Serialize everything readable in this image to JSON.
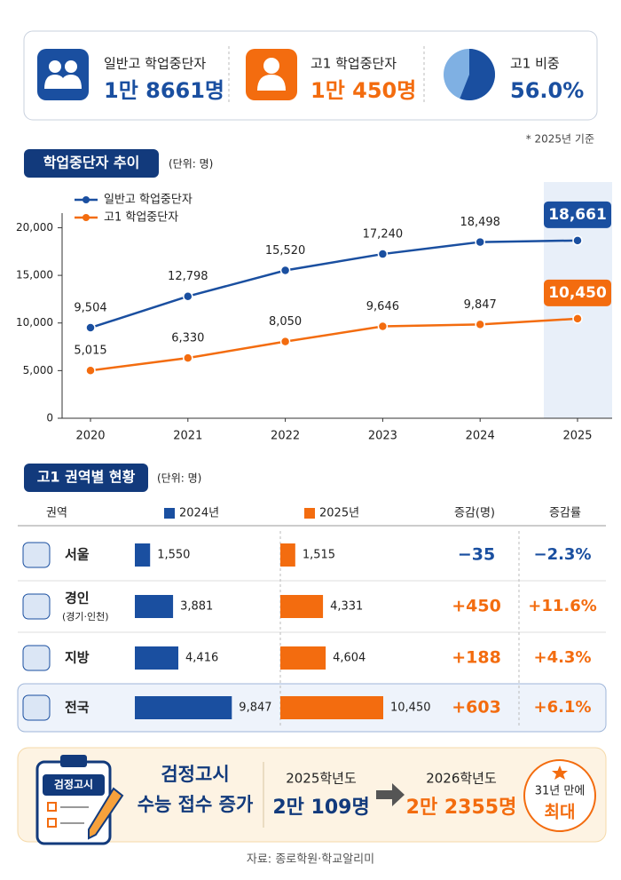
{
  "summary": [
    {
      "label": "일반고 학업중단자",
      "value": "1만 8661명"
    },
    {
      "label": "고1 학업중단자",
      "value": "1만 450명"
    },
    {
      "label": "고1 비중",
      "value": "56.0%",
      "share": 56.0
    }
  ],
  "note": "* 2025년 기준",
  "chart_data": {
    "type": "line",
    "title": "학업중단자 추이",
    "unit": "(단위: 명)",
    "categories": [
      "2020",
      "2021",
      "2022",
      "2023",
      "2024",
      "2025"
    ],
    "series": [
      {
        "name": "일반고 학업중단자",
        "color": "#1a4fa0",
        "values": [
          9504,
          12798,
          15520,
          17240,
          18498,
          18661
        ],
        "value_labels": [
          "9,504",
          "12,798",
          "15,520",
          "17,240",
          "18,498",
          "18,661"
        ]
      },
      {
        "name": "고1 학업중단자",
        "color": "#f36c0f",
        "values": [
          5015,
          6330,
          8050,
          9646,
          9847,
          10450
        ],
        "value_labels": [
          "5,015",
          "6,330",
          "8,050",
          "9,646",
          "9,847",
          "10,450"
        ]
      }
    ],
    "ylim": [
      0,
      22000
    ],
    "yticks": [
      0,
      {
        "value": 5000,
        "label": "5,000"
      },
      {
        "value": 10000,
        "label": "10,000"
      },
      {
        "value": 15000,
        "label": "15,000"
      },
      {
        "value": 20000,
        "label": "20,000"
      }
    ],
    "grid": false,
    "legend": "top-left"
  },
  "regional": {
    "title": "고1 권역별 현황",
    "unit": "(단위: 명)",
    "headers": [
      "권역",
      "2024년",
      "2025년",
      "증감(명)",
      "증감률"
    ],
    "colors": [
      "#1a4fa0",
      "#f36c0f"
    ],
    "rows": [
      {
        "region": "서울",
        "y2024": {
          "value": 1550,
          "label": "1,550"
        },
        "y2025": {
          "value": 1515,
          "label": "1,515"
        },
        "change": "−35",
        "rate": "−2.3%",
        "color": "#1a4fa0"
      },
      {
        "region": "경인",
        "sub": "(경기·인천)",
        "y2024": {
          "value": 3881,
          "label": "3,881"
        },
        "y2025": {
          "value": 4331,
          "label": "4,331"
        },
        "change": "+450",
        "rate": "+11.6%",
        "color": "#f36c0f"
      },
      {
        "region": "지방",
        "y2024": {
          "value": 4416,
          "label": "4,416"
        },
        "y2025": {
          "value": 4604,
          "label": "4,604"
        },
        "change": "+188",
        "rate": "+4.3%",
        "color": "#f36c0f"
      },
      {
        "region": "전국",
        "y2024": {
          "value": 9847,
          "label": "9,847"
        },
        "y2025": {
          "value": 10450,
          "label": "10,450"
        },
        "change": "+603",
        "rate": "+6.1%",
        "color": "#f36c0f"
      }
    ]
  },
  "exam": {
    "badge": "검정고시",
    "title": [
      "검정고시",
      "수능 접수 증가"
    ],
    "from": {
      "year": "2025학년도",
      "value": "2만 109명"
    },
    "to": {
      "year": "2026학년도",
      "value": "2만 2355명"
    },
    "record": [
      "31년 만에",
      "최대"
    ]
  },
  "source": "자료: 종로학원·학교알리미"
}
